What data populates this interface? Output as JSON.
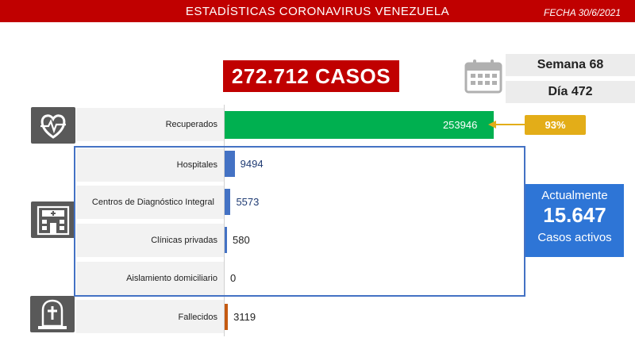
{
  "header": {
    "title": "ESTADÍSTICAS CORONAVIRUS VENEZUELA",
    "date": "FECHA 30/6/2021"
  },
  "summary": {
    "total_cases": "272.712 CASOS",
    "week": "Semana 68",
    "day": "Día 472"
  },
  "recovered_percent": "93%",
  "active_box": {
    "label": "Actualmente",
    "value": "15.647",
    "sub": "Casos activos"
  },
  "colors": {
    "header_red": "#c00000",
    "recovered_green": "#00b050",
    "hospital_blue": "#4472c4",
    "deceased_orange": "#c55a11",
    "percent_gold": "#e3ad18",
    "active_blue": "#2e75d6"
  },
  "icons": {
    "calendar": "calendar-icon",
    "recovered": "heart-pulse-icon",
    "facilities": "hospital-icon",
    "deceased": "tombstone-icon"
  },
  "chart_data": {
    "type": "bar",
    "orientation": "horizontal",
    "categories": [
      "Recuperados",
      "Hospitales",
      "Centros de Diagnóstico Integral",
      "Clínicas privadas",
      "Aislamiento domiciliario",
      "Fallecidos"
    ],
    "values": [
      253946,
      9494,
      5573,
      580,
      0,
      3119
    ],
    "value_labels": [
      "253946",
      "9494",
      "5573",
      "580",
      "0",
      "3119"
    ],
    "bar_colors": [
      "#00b050",
      "#4472c4",
      "#4472c4",
      "#4472c4",
      "#4472c4",
      "#c55a11"
    ],
    "value_label_colors": [
      "#ffffff",
      "#1f3b73",
      "#1f3b73",
      "#222222",
      "#222222",
      "#222222"
    ],
    "xlim": [
      0,
      272712
    ],
    "grid": false,
    "legend": "none"
  }
}
